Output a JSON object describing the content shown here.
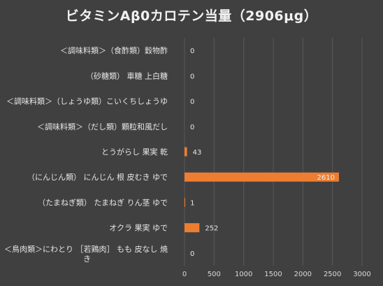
{
  "chart_data": {
    "type": "bar",
    "orientation": "horizontal",
    "title": "ビタミンAβ0カロテン当量（2906μg）",
    "categories": [
      "＜調味料類＞（食酢類）穀物酢",
      "（砂糖類） 車糖 上白糖",
      "＜調味料類＞（しょうゆ類）こいくちしょうゆ",
      "＜調味料類＞（だし類）顆粒和風だし",
      "とうがらし 果実 乾",
      "（にんじん類） にんじん 根 皮むき ゆで",
      "（たまねぎ類） たまねぎ りん茎 ゆで",
      "オクラ 果実 ゆで",
      "＜鳥肉類＞にわとり ［若鶏肉］ もも 皮なし 焼き"
    ],
    "values": [
      0,
      0,
      0,
      0,
      43,
      2610,
      1,
      252,
      0
    ],
    "data_labels": [
      "0",
      "0",
      "0",
      "0",
      "43",
      "2610",
      "1",
      "252",
      "0"
    ],
    "xlim": [
      0,
      3000
    ],
    "xticks": [
      "0",
      "500",
      "1000",
      "1500",
      "2000",
      "2500",
      "3000"
    ],
    "grid": true,
    "legend": "none",
    "colors": {
      "background": "#404040",
      "bar": "#ED7D31",
      "grid": "#595959",
      "text": "#e6e6e6"
    }
  }
}
